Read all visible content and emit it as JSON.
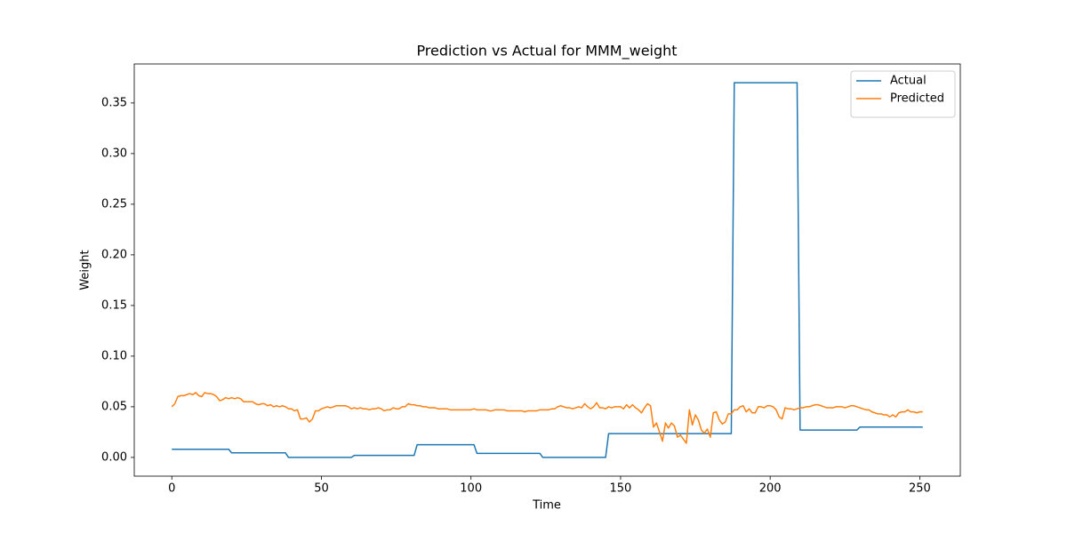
{
  "chart_data": {
    "type": "line",
    "title": "Prediction vs Actual for MMM_weight",
    "xlabel": "Time",
    "ylabel": "Weight",
    "x": [
      0,
      1,
      2,
      3,
      4,
      5,
      6,
      7,
      8,
      9,
      10,
      11,
      12,
      13,
      14,
      15,
      16,
      17,
      18,
      19,
      20,
      21,
      22,
      23,
      24,
      25,
      26,
      27,
      28,
      29,
      30,
      31,
      32,
      33,
      34,
      35,
      36,
      37,
      38,
      39,
      40,
      41,
      42,
      43,
      44,
      45,
      46,
      47,
      48,
      49,
      50,
      51,
      52,
      53,
      54,
      55,
      56,
      57,
      58,
      59,
      60,
      61,
      62,
      63,
      64,
      65,
      66,
      67,
      68,
      69,
      70,
      71,
      72,
      73,
      74,
      75,
      76,
      77,
      78,
      79,
      80,
      81,
      82,
      83,
      84,
      85,
      86,
      87,
      88,
      89,
      90,
      91,
      92,
      93,
      94,
      95,
      96,
      97,
      98,
      99,
      100,
      101,
      102,
      103,
      104,
      105,
      106,
      107,
      108,
      109,
      110,
      111,
      112,
      113,
      114,
      115,
      116,
      117,
      118,
      119,
      120,
      121,
      122,
      123,
      124,
      125,
      126,
      127,
      128,
      129,
      130,
      131,
      132,
      133,
      134,
      135,
      136,
      137,
      138,
      139,
      140,
      141,
      142,
      143,
      144,
      145,
      146,
      147,
      148,
      149,
      150,
      151,
      152,
      153,
      154,
      155,
      156,
      157,
      158,
      159,
      160,
      161,
      162,
      163,
      164,
      165,
      166,
      167,
      168,
      169,
      170,
      171,
      172,
      173,
      174,
      175,
      176,
      177,
      178,
      179,
      180,
      181,
      182,
      183,
      184,
      185,
      186,
      187,
      188,
      189,
      190,
      191,
      192,
      193,
      194,
      195,
      196,
      197,
      198,
      199,
      200,
      201,
      202,
      203,
      204,
      205,
      206,
      207,
      208,
      209,
      210,
      211,
      212,
      213,
      214,
      215,
      216,
      217,
      218,
      219,
      220,
      221,
      222,
      223,
      224,
      225,
      226,
      227,
      228,
      229,
      230,
      231,
      232,
      233,
      234,
      235,
      236,
      237,
      238,
      239,
      240,
      241,
      242,
      243,
      244,
      245,
      246,
      247,
      248,
      249,
      250,
      251
    ],
    "series": [
      {
        "name": "Actual",
        "color": "#1f77b4",
        "values": [
          0.008,
          0.008,
          0.008,
          0.008,
          0.008,
          0.008,
          0.008,
          0.008,
          0.008,
          0.008,
          0.008,
          0.008,
          0.008,
          0.008,
          0.008,
          0.008,
          0.008,
          0.008,
          0.008,
          0.008,
          0.0045,
          0.0045,
          0.0045,
          0.0045,
          0.0045,
          0.0045,
          0.0045,
          0.0045,
          0.0045,
          0.0045,
          0.0045,
          0.0045,
          0.0045,
          0.0045,
          0.0045,
          0.0045,
          0.0045,
          0.0045,
          0.0045,
          0,
          0,
          0,
          0,
          0,
          0,
          0,
          0,
          0,
          0,
          0,
          0,
          0,
          0,
          0,
          0,
          0,
          0,
          0,
          0,
          0,
          0,
          0.002,
          0.002,
          0.002,
          0.002,
          0.002,
          0.002,
          0.002,
          0.002,
          0.002,
          0.002,
          0.002,
          0.002,
          0.002,
          0.002,
          0.002,
          0.002,
          0.002,
          0.002,
          0.002,
          0.002,
          0.002,
          0.0125,
          0.0125,
          0.0125,
          0.0125,
          0.0125,
          0.0125,
          0.0125,
          0.0125,
          0.0125,
          0.0125,
          0.0125,
          0.0125,
          0.0125,
          0.0125,
          0.0125,
          0.0125,
          0.0125,
          0.0125,
          0.0125,
          0.0125,
          0.004,
          0.004,
          0.004,
          0.004,
          0.004,
          0.004,
          0.004,
          0.004,
          0.004,
          0.004,
          0.004,
          0.004,
          0.004,
          0.004,
          0.004,
          0.004,
          0.004,
          0.004,
          0.004,
          0.004,
          0.004,
          0.004,
          0,
          0,
          0,
          0,
          0,
          0,
          0,
          0,
          0,
          0,
          0,
          0,
          0,
          0,
          0,
          0,
          0,
          0,
          0,
          0,
          0,
          0,
          0.0235,
          0.0235,
          0.0235,
          0.0235,
          0.0235,
          0.0235,
          0.0235,
          0.0235,
          0.0235,
          0.0235,
          0.0235,
          0.0235,
          0.0235,
          0.0235,
          0.0235,
          0.0235,
          0.0235,
          0.0235,
          0.0235,
          0.0235,
          0.0235,
          0.0235,
          0.0235,
          0.0235,
          0.0235,
          0.0235,
          0.0235,
          0.0235,
          0.0235,
          0.0235,
          0.0235,
          0.0235,
          0.0235,
          0.0235,
          0.0235,
          0.0235,
          0.0235,
          0.0235,
          0.0235,
          0.0235,
          0.0235,
          0.0235,
          0.37,
          0.37,
          0.37,
          0.37,
          0.37,
          0.37,
          0.37,
          0.37,
          0.37,
          0.37,
          0.37,
          0.37,
          0.37,
          0.37,
          0.37,
          0.37,
          0.37,
          0.37,
          0.37,
          0.37,
          0.37,
          0.37,
          0.027,
          0.027,
          0.027,
          0.027,
          0.027,
          0.027,
          0.027,
          0.027,
          0.027,
          0.027,
          0.027,
          0.027,
          0.027,
          0.027,
          0.027,
          0.027,
          0.027,
          0.027,
          0.027,
          0.027,
          0.03,
          0.03,
          0.03,
          0.03,
          0.03,
          0.03,
          0.03,
          0.03,
          0.03,
          0.03,
          0.03,
          0.03,
          0.03,
          0.03,
          0.03,
          0.03,
          0.03,
          0.03,
          0.03,
          0.03,
          0.03,
          0.03
        ]
      },
      {
        "name": "Predicted",
        "color": "#ff7f0e",
        "values": [
          0.05,
          0.053,
          0.06,
          0.061,
          0.061,
          0.062,
          0.063,
          0.062,
          0.064,
          0.061,
          0.06,
          0.064,
          0.063,
          0.063,
          0.062,
          0.06,
          0.056,
          0.057,
          0.059,
          0.058,
          0.059,
          0.058,
          0.059,
          0.058,
          0.055,
          0.055,
          0.055,
          0.055,
          0.053,
          0.052,
          0.053,
          0.053,
          0.051,
          0.052,
          0.05,
          0.051,
          0.05,
          0.051,
          0.05,
          0.048,
          0.048,
          0.046,
          0.047,
          0.038,
          0.038,
          0.039,
          0.035,
          0.038,
          0.046,
          0.046,
          0.048,
          0.049,
          0.05,
          0.049,
          0.05,
          0.051,
          0.051,
          0.051,
          0.051,
          0.05,
          0.048,
          0.049,
          0.048,
          0.049,
          0.048,
          0.048,
          0.047,
          0.048,
          0.048,
          0.049,
          0.048,
          0.046,
          0.047,
          0.047,
          0.049,
          0.048,
          0.048,
          0.05,
          0.05,
          0.053,
          0.052,
          0.052,
          0.051,
          0.051,
          0.05,
          0.05,
          0.049,
          0.049,
          0.049,
          0.048,
          0.048,
          0.048,
          0.048,
          0.047,
          0.047,
          0.047,
          0.047,
          0.047,
          0.047,
          0.047,
          0.047,
          0.048,
          0.047,
          0.047,
          0.047,
          0.047,
          0.046,
          0.046,
          0.047,
          0.047,
          0.047,
          0.047,
          0.046,
          0.046,
          0.046,
          0.046,
          0.046,
          0.046,
          0.045,
          0.046,
          0.046,
          0.046,
          0.046,
          0.047,
          0.047,
          0.047,
          0.047,
          0.048,
          0.048,
          0.05,
          0.051,
          0.05,
          0.049,
          0.049,
          0.048,
          0.049,
          0.05,
          0.049,
          0.053,
          0.05,
          0.048,
          0.05,
          0.054,
          0.049,
          0.049,
          0.048,
          0.05,
          0.049,
          0.05,
          0.05,
          0.05,
          0.048,
          0.052,
          0.049,
          0.052,
          0.049,
          0.047,
          0.044,
          0.049,
          0.053,
          0.051,
          0.03,
          0.034,
          0.025,
          0.016,
          0.034,
          0.029,
          0.034,
          0.031,
          0.02,
          0.022,
          0.018,
          0.014,
          0.047,
          0.032,
          0.042,
          0.037,
          0.027,
          0.024,
          0.028,
          0.02,
          0.044,
          0.045,
          0.037,
          0.033,
          0.035,
          0.043,
          0.043,
          0.047,
          0.047,
          0.05,
          0.051,
          0.045,
          0.048,
          0.044,
          0.044,
          0.05,
          0.05,
          0.049,
          0.051,
          0.051,
          0.05,
          0.047,
          0.04,
          0.038,
          0.049,
          0.048,
          0.048,
          0.047,
          0.048,
          0.049,
          0.049,
          0.05,
          0.05,
          0.051,
          0.052,
          0.052,
          0.051,
          0.05,
          0.049,
          0.049,
          0.049,
          0.05,
          0.05,
          0.05,
          0.049,
          0.05,
          0.051,
          0.051,
          0.05,
          0.049,
          0.048,
          0.047,
          0.047,
          0.045,
          0.044,
          0.043,
          0.043,
          0.042,
          0.042,
          0.04,
          0.042,
          0.04,
          0.044,
          0.045,
          0.045,
          0.047,
          0.045,
          0.045,
          0.044,
          0.045,
          0.045
        ]
      }
    ],
    "xlim": [
      -12.55,
      263.55
    ],
    "xticks": [
      0,
      50,
      100,
      150,
      200,
      250
    ],
    "ylim": [
      -0.0185,
      0.3885
    ],
    "yticks": [
      {
        "value": 0,
        "label": "0.00"
      },
      {
        "value": 0.05,
        "label": "0.05"
      },
      {
        "value": 0.1,
        "label": "0.10"
      },
      {
        "value": 0.15,
        "label": "0.15"
      },
      {
        "value": 0.2,
        "label": "0.20"
      },
      {
        "value": 0.25,
        "label": "0.25"
      },
      {
        "value": 0.3,
        "label": "0.30"
      },
      {
        "value": 0.35,
        "label": "0.35"
      }
    ],
    "legend": "upper right",
    "grid": false
  }
}
